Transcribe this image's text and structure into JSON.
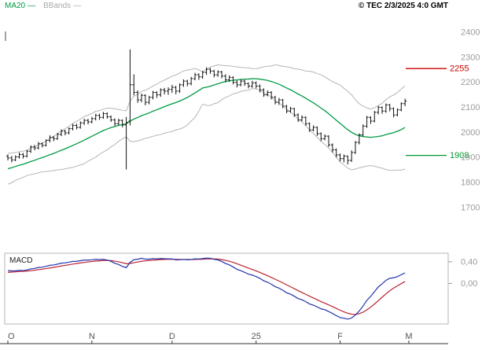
{
  "header": {
    "legend_ma20": {
      "label": "MA20",
      "swatch": "—",
      "color": "#009944"
    },
    "legend_bbands": {
      "label": "BBands",
      "swatch": "—",
      "color": "#aaaaaa"
    },
    "copyright": "© TEC 2/3/2025 4:0 GMT"
  },
  "chart_data": {
    "type": "candlestick",
    "title": "",
    "legend_position": "top-left",
    "grid": false,
    "x_axis": {
      "unit": "month",
      "slots": 105,
      "ticks": [
        {
          "label": "O",
          "index": 0
        },
        {
          "label": "N",
          "index": 22
        },
        {
          "label": "D",
          "index": 43
        },
        {
          "label": "25",
          "index": 65
        },
        {
          "label": "F",
          "index": 87
        },
        {
          "label": "M",
          "index": 105
        }
      ]
    },
    "price_panel": {
      "ylim": [
        1555,
        2485
      ],
      "yticks": [
        2400,
        2300,
        2200,
        2100,
        2000,
        1900,
        1800,
        1700
      ],
      "ytick_color": "#9c9c9c",
      "candle_color": "#111111",
      "levels": [
        {
          "label": "2255",
          "value": 2255,
          "color": "#cc0000"
        },
        {
          "label": "1908",
          "value": 1908,
          "color": "#009933"
        }
      ],
      "indicators": {
        "ma20": {
          "period": 20,
          "color": "#009944",
          "derived": true
        },
        "bbands": {
          "period": 20,
          "mult": 2,
          "color": "#b5b5b5",
          "derived": true
        }
      },
      "pre_closes": [
        1795,
        1805,
        1800,
        1815,
        1822,
        1818,
        1830,
        1842,
        1838,
        1850,
        1862,
        1858,
        1870,
        1865,
        1878,
        1885,
        1880,
        1892,
        1888,
        1895
      ],
      "candles": [
        [
          1905,
          1912,
          1888,
          1898
        ],
        [
          1898,
          1906,
          1880,
          1890
        ],
        [
          1890,
          1908,
          1885,
          1902
        ],
        [
          1902,
          1920,
          1895,
          1912
        ],
        [
          1912,
          1918,
          1896,
          1905
        ],
        [
          1905,
          1930,
          1900,
          1925
        ],
        [
          1925,
          1948,
          1918,
          1942
        ],
        [
          1942,
          1950,
          1928,
          1938
        ],
        [
          1938,
          1962,
          1932,
          1955
        ],
        [
          1955,
          1960,
          1940,
          1948
        ],
        [
          1948,
          1972,
          1944,
          1968
        ],
        [
          1968,
          1988,
          1960,
          1980
        ],
        [
          1980,
          1986,
          1965,
          1975
        ],
        [
          1975,
          1998,
          1970,
          1992
        ],
        [
          1992,
          2012,
          1985,
          2005
        ],
        [
          2005,
          2010,
          1988,
          1998
        ],
        [
          1998,
          2020,
          1992,
          2015
        ],
        [
          2015,
          2034,
          2008,
          2028
        ],
        [
          2028,
          2035,
          2012,
          2020
        ],
        [
          2020,
          2044,
          2015,
          2038
        ],
        [
          2038,
          2055,
          2030,
          2048
        ],
        [
          2048,
          2054,
          2032,
          2042
        ],
        [
          2042,
          2062,
          2036,
          2055
        ],
        [
          2055,
          2074,
          2048,
          2068
        ],
        [
          2068,
          2075,
          2050,
          2060
        ],
        [
          2060,
          2082,
          2054,
          2075
        ],
        [
          2075,
          2080,
          2055,
          2062
        ],
        [
          2062,
          2068,
          2042,
          2050
        ],
        [
          2050,
          2056,
          2026,
          2035
        ],
        [
          2035,
          2055,
          2028,
          2048
        ],
        [
          2048,
          2052,
          2020,
          2030
        ],
        [
          2030,
          2062,
          1852,
          2040
        ],
        [
          2045,
          2332,
          2028,
          2190
        ],
        [
          2190,
          2232,
          2148,
          2160
        ],
        [
          2160,
          2168,
          2118,
          2130
        ],
        [
          2130,
          2155,
          2120,
          2148
        ],
        [
          2148,
          2152,
          2108,
          2120
        ],
        [
          2120,
          2146,
          2112,
          2140
        ],
        [
          2140,
          2166,
          2132,
          2160
        ],
        [
          2160,
          2164,
          2138,
          2150
        ],
        [
          2150,
          2176,
          2142,
          2170
        ],
        [
          2170,
          2178,
          2152,
          2165
        ],
        [
          2165,
          2180,
          2150,
          2172
        ],
        [
          2172,
          2190,
          2158,
          2180
        ],
        [
          2180,
          2186,
          2152,
          2165
        ],
        [
          2165,
          2196,
          2158,
          2190
        ],
        [
          2190,
          2212,
          2182,
          2205
        ],
        [
          2205,
          2210,
          2184,
          2195
        ],
        [
          2195,
          2222,
          2188,
          2215
        ],
        [
          2215,
          2238,
          2208,
          2230
        ],
        [
          2230,
          2236,
          2210,
          2222
        ],
        [
          2222,
          2246,
          2214,
          2240
        ],
        [
          2240,
          2260,
          2230,
          2252
        ],
        [
          2252,
          2258,
          2234,
          2245
        ],
        [
          2245,
          2250,
          2220,
          2230
        ],
        [
          2230,
          2248,
          2222,
          2242
        ],
        [
          2242,
          2246,
          2216,
          2225
        ],
        [
          2225,
          2232,
          2200,
          2210
        ],
        [
          2210,
          2228,
          2202,
          2220
        ],
        [
          2220,
          2224,
          2192,
          2200
        ],
        [
          2200,
          2208,
          2180,
          2190
        ],
        [
          2190,
          2212,
          2184,
          2205
        ],
        [
          2205,
          2210,
          2186,
          2195
        ],
        [
          2195,
          2200,
          2176,
          2185
        ],
        [
          2185,
          2206,
          2178,
          2198
        ],
        [
          2198,
          2204,
          2176,
          2185
        ],
        [
          2185,
          2192,
          2160,
          2170
        ],
        [
          2170,
          2176,
          2142,
          2150
        ],
        [
          2150,
          2168,
          2144,
          2160
        ],
        [
          2160,
          2164,
          2132,
          2140
        ],
        [
          2140,
          2146,
          2112,
          2120
        ],
        [
          2120,
          2138,
          2110,
          2130
        ],
        [
          2130,
          2134,
          2096,
          2105
        ],
        [
          2105,
          2110,
          2076,
          2085
        ],
        [
          2085,
          2102,
          2078,
          2095
        ],
        [
          2095,
          2098,
          2062,
          2070
        ],
        [
          2070,
          2076,
          2042,
          2050
        ],
        [
          2050,
          2068,
          2044,
          2060
        ],
        [
          2060,
          2064,
          2026,
          2035
        ],
        [
          2035,
          2040,
          2002,
          2010
        ],
        [
          2010,
          2028,
          2004,
          2020
        ],
        [
          2020,
          2024,
          1986,
          1995
        ],
        [
          1995,
          2000,
          1966,
          1975
        ],
        [
          1975,
          1992,
          1968,
          1985
        ],
        [
          1985,
          1988,
          1942,
          1950
        ],
        [
          1950,
          1956,
          1920,
          1930
        ],
        [
          1930,
          1936,
          1900,
          1910
        ],
        [
          1910,
          1916,
          1884,
          1895
        ],
        [
          1895,
          1912,
          1880,
          1905
        ],
        [
          1905,
          1908,
          1872,
          1888
        ],
        [
          1888,
          1928,
          1882,
          1920
        ],
        [
          1920,
          1966,
          1914,
          1960
        ],
        [
          1960,
          1996,
          1952,
          1990
        ],
        [
          1990,
          2032,
          1984,
          2025
        ],
        [
          2025,
          2066,
          2018,
          2060
        ],
        [
          2060,
          2064,
          2034,
          2045
        ],
        [
          2045,
          2086,
          2040,
          2080
        ],
        [
          2080,
          2106,
          2072,
          2100
        ],
        [
          2100,
          2104,
          2074,
          2085
        ],
        [
          2085,
          2116,
          2078,
          2110
        ],
        [
          2110,
          2114,
          2084,
          2095
        ],
        [
          2095,
          2100,
          2060,
          2070
        ],
        [
          2070,
          2096,
          2064,
          2090
        ],
        [
          2090,
          2120,
          2084,
          2115
        ],
        [
          2115,
          2135,
          2105,
          2125
        ]
      ]
    },
    "macd_panel": {
      "label": "MACD",
      "params": {
        "fast": 12,
        "slow": 26,
        "signal": 9,
        "scale": 0.01,
        "derived": true
      },
      "yticks": [
        {
          "label": "0,40",
          "value": 0.4
        },
        {
          "label": "0,00",
          "value": 0.0
        }
      ],
      "ytick_color": "#9c9c9c",
      "series_colors": {
        "macd": "#2233aa",
        "signal": "#bb2233"
      }
    }
  }
}
